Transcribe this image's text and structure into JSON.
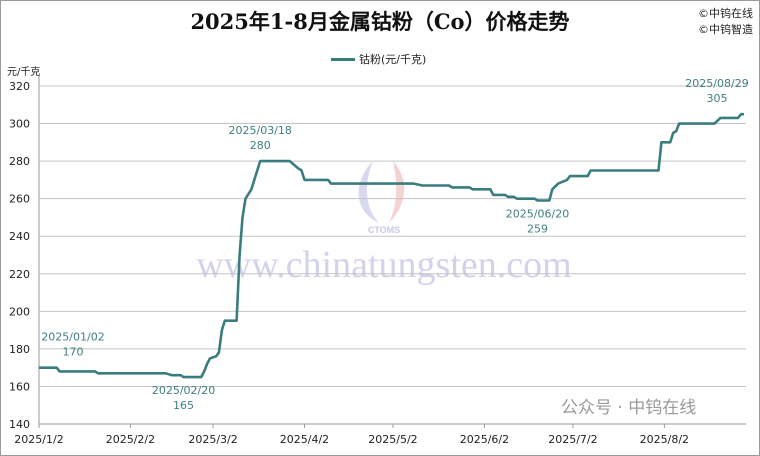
{
  "copyright": [
    "©中钨在线",
    "©中钨智造"
  ],
  "watermark": {
    "url": "www.chinatungsten.com",
    "logo": "CTOMS",
    "footer": "公众号 · 中钨在线"
  },
  "chart_data": {
    "type": "line",
    "title": "2025年1-8月金属钴粉（Co）价格走势",
    "ylabel": "元/千克",
    "xlabel": "",
    "ylim": [
      140,
      320
    ],
    "yticks": [
      140,
      160,
      180,
      200,
      220,
      240,
      260,
      280,
      300,
      320
    ],
    "xlim": [
      "2025-01-02",
      "2025-08-29"
    ],
    "xticks": [
      {
        "date": "2025-01-02",
        "label": "2025/1/2"
      },
      {
        "date": "2025-02-02",
        "label": "2025/2/2"
      },
      {
        "date": "2025-03-02",
        "label": "2025/3/2"
      },
      {
        "date": "2025-04-02",
        "label": "2025/4/2"
      },
      {
        "date": "2025-05-02",
        "label": "2025/5/2"
      },
      {
        "date": "2025-06-02",
        "label": "2025/6/2"
      },
      {
        "date": "2025-07-02",
        "label": "2025/7/2"
      },
      {
        "date": "2025-08-02",
        "label": "2025/8/2"
      }
    ],
    "grid": true,
    "legend": "top-center",
    "color": "#3a7d7e",
    "series": [
      {
        "name": "钴粉(元/千克)",
        "points": [
          [
            "2025-01-02",
            170
          ],
          [
            "2025-01-08",
            170
          ],
          [
            "2025-01-09",
            168
          ],
          [
            "2025-01-21",
            168
          ],
          [
            "2025-01-22",
            167
          ],
          [
            "2025-02-14",
            167
          ],
          [
            "2025-02-16",
            166
          ],
          [
            "2025-02-19",
            166
          ],
          [
            "2025-02-20",
            165
          ],
          [
            "2025-02-26",
            165
          ],
          [
            "2025-02-27",
            168
          ],
          [
            "2025-02-28",
            172
          ],
          [
            "2025-03-01",
            175
          ],
          [
            "2025-03-03",
            176
          ],
          [
            "2025-03-04",
            178
          ],
          [
            "2025-03-05",
            190
          ],
          [
            "2025-03-06",
            195
          ],
          [
            "2025-03-10",
            195
          ],
          [
            "2025-03-11",
            230
          ],
          [
            "2025-03-12",
            250
          ],
          [
            "2025-03-13",
            260
          ],
          [
            "2025-03-15",
            265
          ],
          [
            "2025-03-16",
            270
          ],
          [
            "2025-03-18",
            280
          ],
          [
            "2025-03-28",
            280
          ],
          [
            "2025-03-31",
            276
          ],
          [
            "2025-04-01",
            275
          ],
          [
            "2025-04-02",
            270
          ],
          [
            "2025-04-10",
            270
          ],
          [
            "2025-04-11",
            268
          ],
          [
            "2025-05-09",
            268
          ],
          [
            "2025-05-12",
            267
          ],
          [
            "2025-05-21",
            267
          ],
          [
            "2025-05-22",
            266
          ],
          [
            "2025-05-28",
            266
          ],
          [
            "2025-05-29",
            265
          ],
          [
            "2025-06-04",
            265
          ],
          [
            "2025-06-05",
            262
          ],
          [
            "2025-06-09",
            262
          ],
          [
            "2025-06-10",
            261
          ],
          [
            "2025-06-12",
            261
          ],
          [
            "2025-06-13",
            260
          ],
          [
            "2025-06-19",
            260
          ],
          [
            "2025-06-20",
            259
          ],
          [
            "2025-06-24",
            259
          ],
          [
            "2025-06-25",
            265
          ],
          [
            "2025-06-27",
            268
          ],
          [
            "2025-06-30",
            270
          ],
          [
            "2025-07-01",
            272
          ],
          [
            "2025-07-07",
            272
          ],
          [
            "2025-07-08",
            275
          ],
          [
            "2025-07-31",
            275
          ],
          [
            "2025-08-01",
            290
          ],
          [
            "2025-08-04",
            290
          ],
          [
            "2025-08-05",
            295
          ],
          [
            "2025-08-06",
            296
          ],
          [
            "2025-08-07",
            300
          ],
          [
            "2025-08-19",
            300
          ],
          [
            "2025-08-21",
            303
          ],
          [
            "2025-08-27",
            303
          ],
          [
            "2025-08-28",
            305
          ],
          [
            "2025-08-29",
            305
          ]
        ]
      }
    ],
    "annotations": [
      {
        "date": "2025-01-02",
        "value": 170,
        "label": "2025/01/02",
        "value_label": "170",
        "pos": "above"
      },
      {
        "date": "2025-02-20",
        "value": 165,
        "label": "2025/02/20",
        "value_label": "165",
        "pos": "below"
      },
      {
        "date": "2025-03-18",
        "value": 280,
        "label": "2025/03/18",
        "value_label": "280",
        "pos": "above"
      },
      {
        "date": "2025-06-20",
        "value": 259,
        "label": "2025/06/20",
        "value_label": "259",
        "pos": "below"
      },
      {
        "date": "2025-08-29",
        "value": 305,
        "label": "2025/08/29",
        "value_label": "305",
        "pos": "above"
      }
    ]
  }
}
